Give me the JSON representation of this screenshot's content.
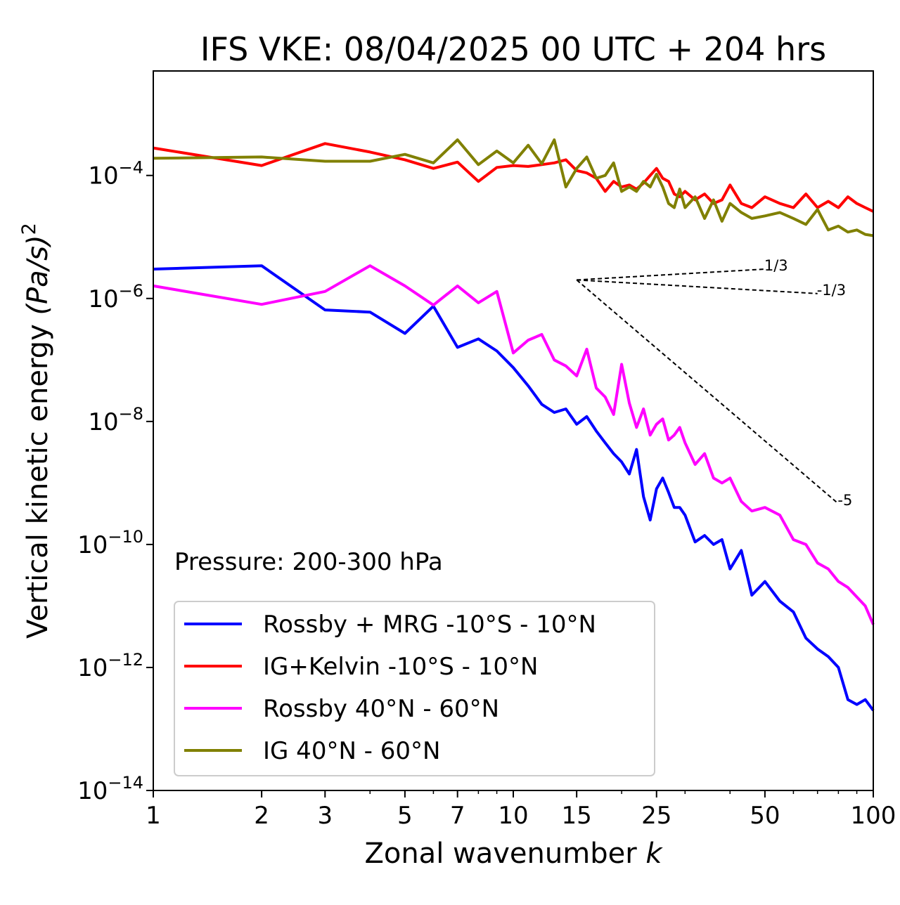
{
  "chart_data": {
    "type": "line",
    "title": "IFS VKE: 08/04/2025 00 UTC + 204 hrs",
    "xlabel": "Zonal wavenumber",
    "xlabel_var": "k",
    "ylabel": "Vertical kinetic energy",
    "ylabel_unit": "(Pa/s)",
    "ylabel_exp": "2",
    "xscale": "log",
    "yscale": "log",
    "xlim": [
      1,
      100
    ],
    "ylim": [
      1e-14,
      0.005
    ],
    "xticks": [
      1,
      2,
      3,
      5,
      7,
      10,
      15,
      25,
      50,
      100
    ],
    "xtick_labels": [
      "1",
      "2",
      "3",
      "5",
      "7",
      "10",
      "15",
      "25",
      "50",
      "100"
    ],
    "yticks": [
      -14,
      -12,
      -10,
      -8,
      -6,
      -4
    ],
    "ytick_base": "10",
    "ytick_exponents": [
      "−14",
      "−12",
      "−10",
      "−8",
      "−6",
      "−4"
    ],
    "annotation": "Pressure: 200-300 hPa",
    "legend_position": "lower-left",
    "reference_lines": [
      {
        "label": "1/3",
        "x": [
          15,
          50
        ],
        "y": [
          2e-06,
          3e-06
        ]
      },
      {
        "label": "-1/3",
        "x": [
          15,
          70
        ],
        "y": [
          2e-06,
          1.2e-06
        ]
      },
      {
        "label": "-5",
        "x": [
          15,
          80
        ],
        "y": [
          2e-06,
          4.6e-10
        ]
      }
    ],
    "series": [
      {
        "name": "Rossby + MRG -10°S - 10°N",
        "color": "#0000ff",
        "x": [
          1,
          2,
          3,
          4,
          5,
          6,
          7,
          8,
          9,
          10,
          11,
          12,
          13,
          14,
          15,
          16,
          17,
          18,
          19,
          20,
          21,
          22,
          23,
          24,
          25,
          26,
          27,
          28,
          29,
          30,
          32,
          34,
          36,
          38,
          40,
          43,
          46,
          50,
          55,
          60,
          65,
          70,
          75,
          80,
          85,
          90,
          95,
          100
        ],
        "y": [
          3e-06,
          3.4e-06,
          6.5e-07,
          6e-07,
          2.7e-07,
          7.5e-07,
          1.6e-07,
          2.2e-07,
          1.4e-07,
          7.5e-08,
          3.8e-08,
          1.9e-08,
          1.4e-08,
          1.6e-08,
          9e-09,
          1.2e-08,
          7e-09,
          4.5e-09,
          3e-09,
          2.2e-09,
          1.4e-09,
          3.5e-09,
          6e-10,
          2.5e-10,
          8e-10,
          1.2e-09,
          7e-10,
          4e-10,
          4e-10,
          3e-10,
          1.1e-10,
          1.4e-10,
          1e-10,
          1.2e-10,
          4e-11,
          8e-11,
          1.5e-11,
          2.5e-11,
          1.2e-11,
          8e-12,
          3e-12,
          2e-12,
          1.5e-12,
          1e-12,
          3e-13,
          2.5e-13,
          3e-13,
          2e-13
        ]
      },
      {
        "name": "IG+Kelvin -10°S - 10°N",
        "color": "#ff0000",
        "x": [
          1,
          2,
          3,
          4,
          5,
          6,
          7,
          8,
          9,
          10,
          11,
          12,
          13,
          14,
          15,
          16,
          17,
          18,
          19,
          20,
          21,
          22,
          23,
          24,
          25,
          26,
          27,
          28,
          29,
          30,
          32,
          34,
          36,
          38,
          40,
          43,
          46,
          50,
          55,
          60,
          65,
          70,
          75,
          80,
          85,
          90,
          95,
          100
        ],
        "y": [
          0.00028,
          0.000145,
          0.00033,
          0.00024,
          0.00018,
          0.00013,
          0.000165,
          8e-05,
          0.000135,
          0.000145,
          0.00014,
          0.00015,
          0.00016,
          0.00018,
          0.00012,
          0.00011,
          9e-05,
          5.5e-05,
          8e-05,
          6.5e-05,
          7e-05,
          6e-05,
          7.5e-05,
          0.0001,
          0.00013,
          9e-05,
          8e-05,
          5e-05,
          4.5e-05,
          5.5e-05,
          4e-05,
          5e-05,
          3.5e-05,
          4e-05,
          7e-05,
          3.5e-05,
          3e-05,
          4.5e-05,
          3.5e-05,
          3e-05,
          5e-05,
          3e-05,
          3.8e-05,
          3e-05,
          4.5e-05,
          3.5e-05,
          3e-05,
          2.6e-05
        ]
      },
      {
        "name": "Rossby 40°N - 60°N",
        "color": "#ff00ff",
        "x": [
          1,
          2,
          3,
          4,
          5,
          6,
          7,
          8,
          9,
          10,
          11,
          12,
          13,
          14,
          15,
          16,
          17,
          18,
          19,
          20,
          21,
          22,
          23,
          24,
          25,
          26,
          27,
          28,
          29,
          30,
          32,
          34,
          36,
          38,
          40,
          43,
          46,
          50,
          55,
          60,
          65,
          70,
          75,
          80,
          85,
          90,
          95,
          100
        ],
        "y": [
          1.6e-06,
          8e-07,
          1.3e-06,
          3.4e-06,
          1.6e-06,
          7.8e-07,
          1.6e-06,
          8.5e-07,
          1.3e-06,
          1.3e-07,
          2.1e-07,
          2.6e-07,
          1e-07,
          8e-08,
          5.5e-08,
          1.5e-07,
          3.5e-08,
          2.5e-08,
          1.3e-08,
          8.5e-08,
          2e-08,
          8e-09,
          1.6e-08,
          6e-09,
          9e-09,
          1.1e-08,
          5e-09,
          6e-09,
          8e-09,
          4.5e-09,
          2e-09,
          3e-09,
          1.2e-09,
          1e-09,
          1.2e-09,
          5e-10,
          3.5e-10,
          4e-10,
          3e-10,
          1.2e-10,
          1e-10,
          5e-11,
          4e-11,
          2.5e-11,
          2e-11,
          1.4e-11,
          1e-11,
          5e-12
        ]
      },
      {
        "name": "IG 40°N - 60°N",
        "color": "#808000",
        "x": [
          1,
          2,
          3,
          4,
          5,
          6,
          7,
          8,
          9,
          10,
          11,
          12,
          13,
          14,
          15,
          16,
          17,
          18,
          19,
          20,
          21,
          22,
          23,
          24,
          25,
          26,
          27,
          28,
          29,
          30,
          32,
          34,
          36,
          38,
          40,
          43,
          46,
          50,
          55,
          60,
          65,
          70,
          75,
          80,
          85,
          90,
          95,
          100
        ],
        "y": [
          0.00019,
          0.0002,
          0.00017,
          0.00017,
          0.00022,
          0.00016,
          0.00038,
          0.00015,
          0.00025,
          0.00016,
          0.00031,
          0.000155,
          0.00038,
          6.5e-05,
          0.00013,
          0.0002,
          9e-05,
          0.0001,
          0.00016,
          5.5e-05,
          6.5e-05,
          5.5e-05,
          8e-05,
          6.5e-05,
          0.000105,
          6.5e-05,
          3.5e-05,
          3e-05,
          6e-05,
          3e-05,
          4.5e-05,
          2e-05,
          4e-05,
          1.8e-05,
          3.5e-05,
          2.5e-05,
          2e-05,
          2.2e-05,
          2.5e-05,
          2e-05,
          1.6e-05,
          2.8e-05,
          1.3e-05,
          1.5e-05,
          1.2e-05,
          1.3e-05,
          1.1e-05,
          1.05e-05
        ]
      }
    ]
  }
}
